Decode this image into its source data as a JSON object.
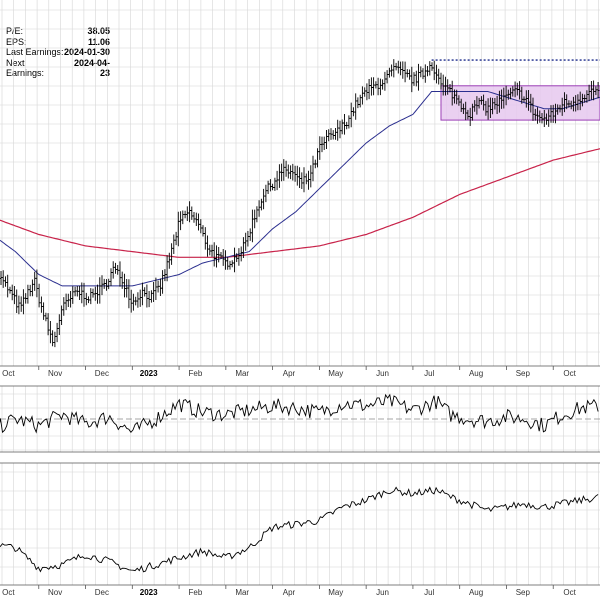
{
  "info": {
    "pe_label": "P/E:",
    "pe_value": "38.05",
    "eps_label": "EPS:",
    "eps_value": "11.06",
    "last_earnings_label": "Last Earnings:",
    "last_earnings_value": "2024-01-30",
    "next_earnings_label": "Next Earnings:",
    "next_earnings_value": "2024-04-23"
  },
  "colors": {
    "price": "#000000",
    "ma_short": "#2b2f8f",
    "ma_long": "#c8234a",
    "box_fill": "#e6c8ef",
    "box_stroke": "#9b3fb6",
    "dotted_line": "#1b2a8a",
    "grid": "#d6d6d6",
    "reference_line": "#888888"
  },
  "chart_data": [
    {
      "type": "ohlc",
      "panel": "price",
      "x_axis_labels": [
        "Oct",
        "Nov",
        "Dec",
        "2023",
        "Feb",
        "Mar",
        "Apr",
        "May",
        "Jun",
        "Jul",
        "Aug",
        "Sep",
        "Oct"
      ],
      "bold_labels": [
        "2023"
      ],
      "months": [
        0,
        1,
        2,
        3,
        4,
        5,
        6,
        7,
        8,
        9,
        10,
        11,
        12,
        13
      ],
      "price_path": [
        [
          0.0,
          53
        ],
        [
          0.3,
          50
        ],
        [
          0.6,
          46
        ],
        [
          0.9,
          51
        ],
        [
          1.1,
          45
        ],
        [
          1.3,
          40
        ],
        [
          1.5,
          46
        ],
        [
          1.8,
          49
        ],
        [
          2.1,
          48
        ],
        [
          2.4,
          50
        ],
        [
          2.6,
          53
        ],
        [
          2.8,
          51
        ],
        [
          3.0,
          47
        ],
        [
          3.2,
          49
        ],
        [
          3.4,
          48
        ],
        [
          3.6,
          50
        ],
        [
          3.8,
          55
        ],
        [
          4.0,
          61
        ],
        [
          4.2,
          63
        ],
        [
          4.4,
          61
        ],
        [
          4.6,
          57
        ],
        [
          4.8,
          55
        ],
        [
          5.0,
          54
        ],
        [
          5.2,
          55
        ],
        [
          5.4,
          57
        ],
        [
          5.6,
          62
        ],
        [
          5.8,
          66
        ],
        [
          6.0,
          68
        ],
        [
          6.2,
          70
        ],
        [
          6.4,
          70
        ],
        [
          6.6,
          68
        ],
        [
          6.8,
          69
        ],
        [
          7.0,
          74
        ],
        [
          7.2,
          76
        ],
        [
          7.4,
          77
        ],
        [
          7.6,
          79
        ],
        [
          7.8,
          82
        ],
        [
          8.0,
          84
        ],
        [
          8.2,
          85
        ],
        [
          8.4,
          86
        ],
        [
          8.6,
          88
        ],
        [
          8.8,
          87
        ],
        [
          9.0,
          86
        ],
        [
          9.2,
          87
        ],
        [
          9.4,
          89
        ],
        [
          9.6,
          85
        ],
        [
          9.8,
          84
        ],
        [
          10.0,
          82
        ],
        [
          10.2,
          80
        ],
        [
          10.4,
          82
        ],
        [
          10.6,
          81
        ],
        [
          10.8,
          82
        ],
        [
          11.0,
          83
        ],
        [
          11.2,
          84
        ],
        [
          11.4,
          83
        ],
        [
          11.6,
          80
        ],
        [
          11.8,
          79
        ],
        [
          12.0,
          80
        ],
        [
          12.2,
          82
        ],
        [
          12.4,
          82
        ],
        [
          12.6,
          83
        ],
        [
          12.8,
          84
        ],
        [
          13.0,
          84
        ]
      ],
      "ma_short_path": [
        [
          0.0,
          59
        ],
        [
          0.5,
          56
        ],
        [
          1.0,
          52
        ],
        [
          1.5,
          50
        ],
        [
          2.0,
          50
        ],
        [
          2.5,
          50
        ],
        [
          3.0,
          50
        ],
        [
          3.5,
          51
        ],
        [
          4.0,
          52
        ],
        [
          4.5,
          54
        ],
        [
          5.0,
          55
        ],
        [
          5.5,
          56
        ],
        [
          6.0,
          60
        ],
        [
          6.5,
          63
        ],
        [
          7.0,
          67
        ],
        [
          7.5,
          71
        ],
        [
          8.0,
          75
        ],
        [
          8.5,
          78
        ],
        [
          9.0,
          80
        ],
        [
          9.4,
          84
        ],
        [
          9.8,
          84
        ],
        [
          10.2,
          84
        ],
        [
          10.6,
          84
        ],
        [
          11.0,
          83
        ],
        [
          11.4,
          82
        ],
        [
          11.8,
          81
        ],
        [
          12.2,
          81
        ],
        [
          12.6,
          82
        ],
        [
          13.0,
          83
        ]
      ],
      "ma_long_path": [
        [
          0.0,
          62
        ],
        [
          1.0,
          59
        ],
        [
          2.0,
          57
        ],
        [
          3.0,
          56
        ],
        [
          4.0,
          55
        ],
        [
          5.0,
          55
        ],
        [
          6.0,
          56
        ],
        [
          7.0,
          57
        ],
        [
          8.0,
          59
        ],
        [
          9.0,
          62
        ],
        [
          10.0,
          66
        ],
        [
          11.0,
          69
        ],
        [
          12.0,
          72
        ],
        [
          13.0,
          74
        ]
      ],
      "trading_range": {
        "x_start": 9.6,
        "x_end": 13.0,
        "y_low": 79,
        "y_high": 85
      },
      "resistance_line": {
        "x_start": 9.4,
        "x_end": 13.0,
        "y": 89.5
      },
      "ylim": [
        36,
        100
      ]
    },
    {
      "type": "line",
      "panel": "oscillator",
      "path": [
        [
          0.0,
          45
        ],
        [
          0.5,
          50
        ],
        [
          1.0,
          47
        ],
        [
          1.5,
          52
        ],
        [
          2.0,
          48
        ],
        [
          2.5,
          51
        ],
        [
          3.0,
          44
        ],
        [
          3.5,
          50
        ],
        [
          4.0,
          57
        ],
        [
          4.5,
          53
        ],
        [
          5.0,
          52
        ],
        [
          5.5,
          54
        ],
        [
          6.0,
          56
        ],
        [
          6.5,
          55
        ],
        [
          7.0,
          53
        ],
        [
          7.5,
          57
        ],
        [
          8.0,
          56
        ],
        [
          8.5,
          58
        ],
        [
          9.0,
          54
        ],
        [
          9.5,
          58
        ],
        [
          9.8,
          52
        ],
        [
          10.2,
          50
        ],
        [
          10.6,
          49
        ],
        [
          11.0,
          51
        ],
        [
          11.4,
          50
        ],
        [
          11.8,
          47
        ],
        [
          12.2,
          52
        ],
        [
          12.6,
          55
        ],
        [
          13.0,
          56
        ]
      ],
      "reference_level": 50,
      "ylim": [
        35,
        65
      ]
    },
    {
      "type": "line",
      "panel": "relative_strength",
      "path": [
        [
          0.0,
          44
        ],
        [
          0.5,
          43
        ],
        [
          1.0,
          37
        ],
        [
          1.5,
          38
        ],
        [
          2.0,
          41
        ],
        [
          2.5,
          39
        ],
        [
          3.0,
          36
        ],
        [
          3.5,
          38
        ],
        [
          4.0,
          40
        ],
        [
          4.5,
          42
        ],
        [
          5.0,
          40
        ],
        [
          5.5,
          43
        ],
        [
          6.0,
          49
        ],
        [
          6.5,
          50
        ],
        [
          7.0,
          51
        ],
        [
          7.5,
          55
        ],
        [
          8.0,
          57
        ],
        [
          8.5,
          60
        ],
        [
          9.0,
          59
        ],
        [
          9.5,
          60
        ],
        [
          9.8,
          58
        ],
        [
          10.2,
          56
        ],
        [
          10.6,
          54
        ],
        [
          11.0,
          55
        ],
        [
          11.4,
          56
        ],
        [
          11.8,
          55
        ],
        [
          12.2,
          56
        ],
        [
          12.6,
          57
        ],
        [
          13.0,
          58
        ]
      ],
      "ylim": [
        32,
        68
      ]
    }
  ]
}
